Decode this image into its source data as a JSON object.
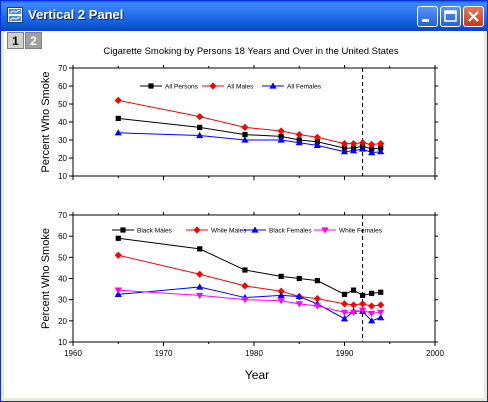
{
  "window": {
    "title": "Vertical 2 Panel"
  },
  "layer_tabs": [
    "1",
    "2"
  ],
  "chart_data": [
    {
      "type": "line",
      "title": "Cigarette Smoking by Persons 18 Years and Over in the United States",
      "ylabel": "Percent Who Smoke",
      "xlabel": "",
      "xlim": [
        1960,
        2000
      ],
      "ylim": [
        10,
        70
      ],
      "yticks": [
        10,
        20,
        30,
        40,
        50,
        60,
        70
      ],
      "vline_x": 1992,
      "legend_position": "top-center",
      "series": [
        {
          "name": "All Persons",
          "color": "#000000",
          "marker": "square",
          "x": [
            1965,
            1974,
            1979,
            1983,
            1985,
            1987,
            1990,
            1991,
            1992,
            1993,
            1994
          ],
          "y": [
            42,
            37,
            33,
            32,
            30,
            29,
            25.5,
            25.5,
            26.5,
            25,
            25.5
          ]
        },
        {
          "name": "All Males",
          "color": "#ff0000",
          "marker": "diamond",
          "x": [
            1965,
            1974,
            1979,
            1983,
            1985,
            1987,
            1990,
            1991,
            1992,
            1993,
            1994
          ],
          "y": [
            52,
            43,
            37,
            35,
            33,
            31.5,
            28,
            28,
            28.5,
            27.5,
            28
          ]
        },
        {
          "name": "All Females",
          "color": "#0000ff",
          "marker": "triangle",
          "x": [
            1965,
            1974,
            1979,
            1983,
            1985,
            1987,
            1990,
            1991,
            1992,
            1993,
            1994
          ],
          "y": [
            34,
            32.5,
            30,
            30,
            28.5,
            27,
            23.5,
            24,
            25,
            23,
            23.5
          ]
        }
      ]
    },
    {
      "type": "line",
      "title": "",
      "ylabel": "Percent Who Smoke",
      "xlabel": "Year",
      "xlim": [
        1960,
        2000
      ],
      "ylim": [
        10,
        70
      ],
      "xticks": [
        1960,
        1970,
        1980,
        1990,
        2000
      ],
      "yticks": [
        10,
        20,
        30,
        40,
        50,
        60,
        70
      ],
      "vline_x": 1992,
      "legend_position": "top",
      "series": [
        {
          "name": "Black Males",
          "color": "#000000",
          "marker": "square",
          "x": [
            1965,
            1974,
            1979,
            1983,
            1985,
            1987,
            1990,
            1991,
            1992,
            1993,
            1994
          ],
          "y": [
            59,
            54,
            44,
            41,
            40,
            39,
            32.5,
            34.5,
            32,
            33,
            33.5
          ]
        },
        {
          "name": "While Males",
          "color": "#ff0000",
          "marker": "diamond",
          "x": [
            1965,
            1974,
            1979,
            1983,
            1985,
            1987,
            1990,
            1991,
            1992,
            1993,
            1994
          ],
          "y": [
            51,
            42,
            36.5,
            34,
            31.5,
            30.5,
            28,
            27.5,
            28,
            27,
            27.5
          ]
        },
        {
          "name": "Black Females",
          "color": "#0000ff",
          "marker": "triangle",
          "x": [
            1965,
            1974,
            1979,
            1983,
            1985,
            1987,
            1990,
            1991,
            1992,
            1993,
            1994
          ],
          "y": [
            32.5,
            36,
            31,
            32,
            31.5,
            28,
            21,
            24.5,
            24.5,
            20,
            21.5
          ]
        },
        {
          "name": "While Females",
          "color": "#ff00ff",
          "marker": "triangle-down",
          "x": [
            1965,
            1974,
            1979,
            1983,
            1985,
            1987,
            1990,
            1991,
            1992,
            1993,
            1994
          ],
          "y": [
            34.5,
            32,
            30,
            29.5,
            28,
            27,
            24,
            24,
            25,
            23.5,
            24
          ]
        }
      ]
    }
  ]
}
